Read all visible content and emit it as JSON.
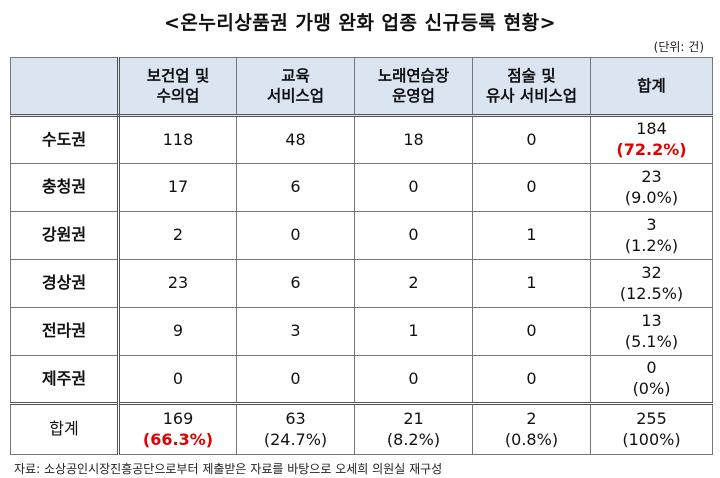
{
  "title": "<온누리상품권 가맹 완화 업종 신규등록 현황>",
  "unit": "(단위: 건)",
  "columns": [
    {
      "line1": "보건업 및",
      "line2": "수의업"
    },
    {
      "line1": "교육",
      "line2": "서비스업"
    },
    {
      "line1": "노래연습장",
      "line2": "운영업"
    },
    {
      "line1": "점술 및",
      "line2": "유사 서비스업"
    },
    {
      "line1": "합계",
      "line2": ""
    }
  ],
  "rows": [
    {
      "region": "수도권",
      "cells": [
        "118",
        "48",
        "18",
        "0"
      ],
      "total": "184",
      "pct": "(72.2%)",
      "pct_highlight": true
    },
    {
      "region": "충청권",
      "cells": [
        "17",
        "6",
        "0",
        "0"
      ],
      "total": "23",
      "pct": "(9.0%)",
      "pct_highlight": false
    },
    {
      "region": "강원권",
      "cells": [
        "2",
        "0",
        "0",
        "1"
      ],
      "total": "3",
      "pct": "(1.2%)",
      "pct_highlight": false
    },
    {
      "region": "경상권",
      "cells": [
        "23",
        "6",
        "2",
        "1"
      ],
      "total": "32",
      "pct": "(12.5%)",
      "pct_highlight": false
    },
    {
      "region": "전라권",
      "cells": [
        "9",
        "3",
        "1",
        "0"
      ],
      "total": "13",
      "pct": "(5.1%)",
      "pct_highlight": false
    },
    {
      "region": "제주권",
      "cells": [
        "0",
        "0",
        "0",
        "0"
      ],
      "total": "0",
      "pct": "(0%)",
      "pct_highlight": false
    }
  ],
  "totals": {
    "label": "합계",
    "cells": [
      {
        "value": "169",
        "pct": "(66.3%)",
        "pct_highlight": true
      },
      {
        "value": "63",
        "pct": "(24.7%)",
        "pct_highlight": false
      },
      {
        "value": "21",
        "pct": "(8.2%)",
        "pct_highlight": false
      },
      {
        "value": "2",
        "pct": "(0.8%)",
        "pct_highlight": false
      },
      {
        "value": "255",
        "pct": "(100%)",
        "pct_highlight": false
      }
    ]
  },
  "source": "자료: 소상공인시장진흥공단으로부터 제출받은 자료를 바탕으로 오세희 의원실 재구성",
  "colors": {
    "header_bg": "#dbe4f1",
    "highlight": "#e00000"
  }
}
